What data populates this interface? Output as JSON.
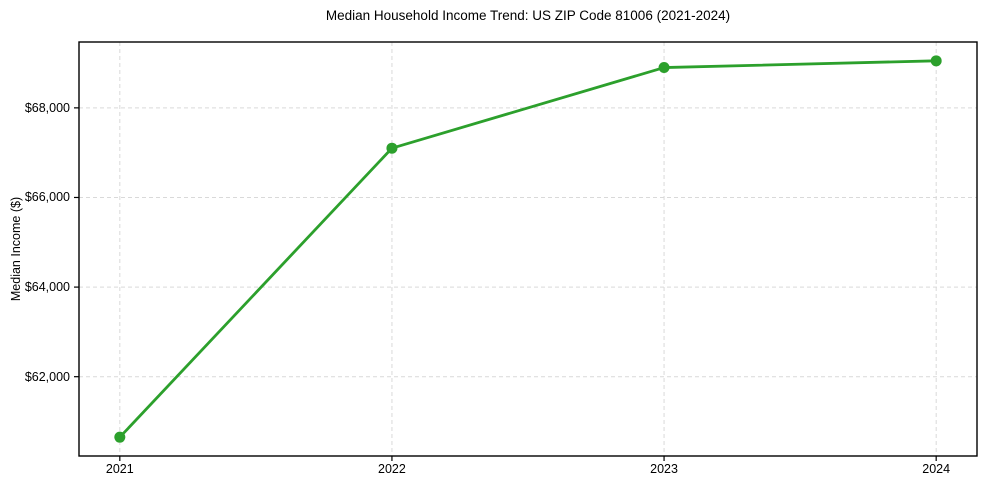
{
  "chart_data": {
    "type": "line",
    "title": "Median Household Income Trend: US ZIP Code 81006 (2021-2024)",
    "xlabel": "",
    "ylabel": "Median Income ($)",
    "x": [
      2021,
      2022,
      2023,
      2024
    ],
    "values": [
      60650,
      67100,
      68900,
      69050
    ],
    "xtick_labels": [
      "2021",
      "2022",
      "2023",
      "2024"
    ],
    "ytick_values": [
      62000,
      64000,
      66000,
      68000
    ],
    "ytick_labels": [
      "$62,000",
      "$64,000",
      "$66,000",
      "$68,000"
    ],
    "xlim": [
      2020.85,
      2024.15
    ],
    "ylim": [
      60230,
      69470
    ],
    "grid": true,
    "grid_style": "dashed",
    "legend_position": "none",
    "line_color": "#2ca02c",
    "marker": "circle",
    "marker_diameter": 11,
    "line_width": 2.8,
    "grid_color": "#d9d9d9",
    "axis_color": "#000000",
    "background_color": "#ffffff"
  }
}
